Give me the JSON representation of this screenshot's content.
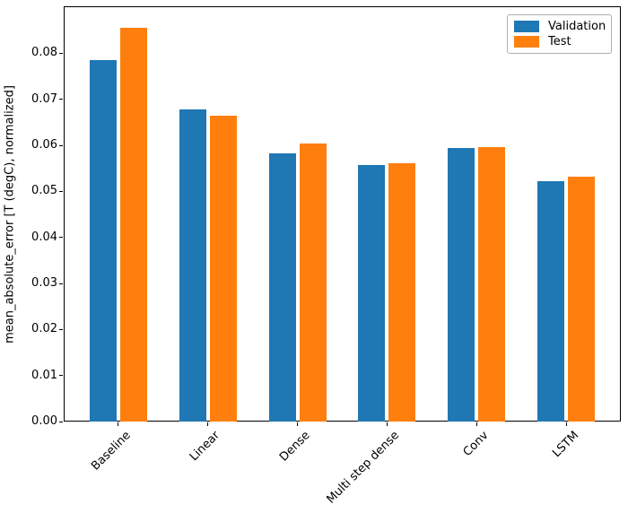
{
  "figure": {
    "background": "#ffffff",
    "axes_color": "#000000"
  },
  "chart_data": {
    "type": "bar",
    "title": "",
    "xlabel": "",
    "ylabel": "mean_absolute_error [T (degC), normalized]",
    "categories": [
      "Baseline",
      "Linear",
      "Dense",
      "Multi step dense",
      "Conv",
      "LSTM"
    ],
    "series": [
      {
        "name": "Validation",
        "color": "#1f77b4",
        "values": [
          0.0785,
          0.0678,
          0.0582,
          0.0557,
          0.0594,
          0.0523
        ]
      },
      {
        "name": "Test",
        "color": "#ff7f0e",
        "values": [
          0.0855,
          0.0664,
          0.0603,
          0.0561,
          0.0596,
          0.0532
        ]
      }
    ],
    "ylim": [
      0,
      0.0902
    ],
    "yticks": [
      {
        "value": 0.0,
        "label": "0.00"
      },
      {
        "value": 0.01,
        "label": "0.01"
      },
      {
        "value": 0.02,
        "label": "0.02"
      },
      {
        "value": 0.03,
        "label": "0.03"
      },
      {
        "value": 0.04,
        "label": "0.04"
      },
      {
        "value": 0.05,
        "label": "0.05"
      },
      {
        "value": 0.06,
        "label": "0.06"
      },
      {
        "value": 0.07,
        "label": "0.07"
      },
      {
        "value": 0.08,
        "label": "0.08"
      }
    ],
    "xtick_rotation_deg": 45,
    "grid": false,
    "legend": {
      "position": "upper right",
      "entries": [
        "Validation",
        "Test"
      ]
    },
    "bar_layout": {
      "group_offset": 0.17,
      "bar_width": 0.3,
      "xlim": [
        -0.6075,
        5.6075
      ]
    }
  }
}
